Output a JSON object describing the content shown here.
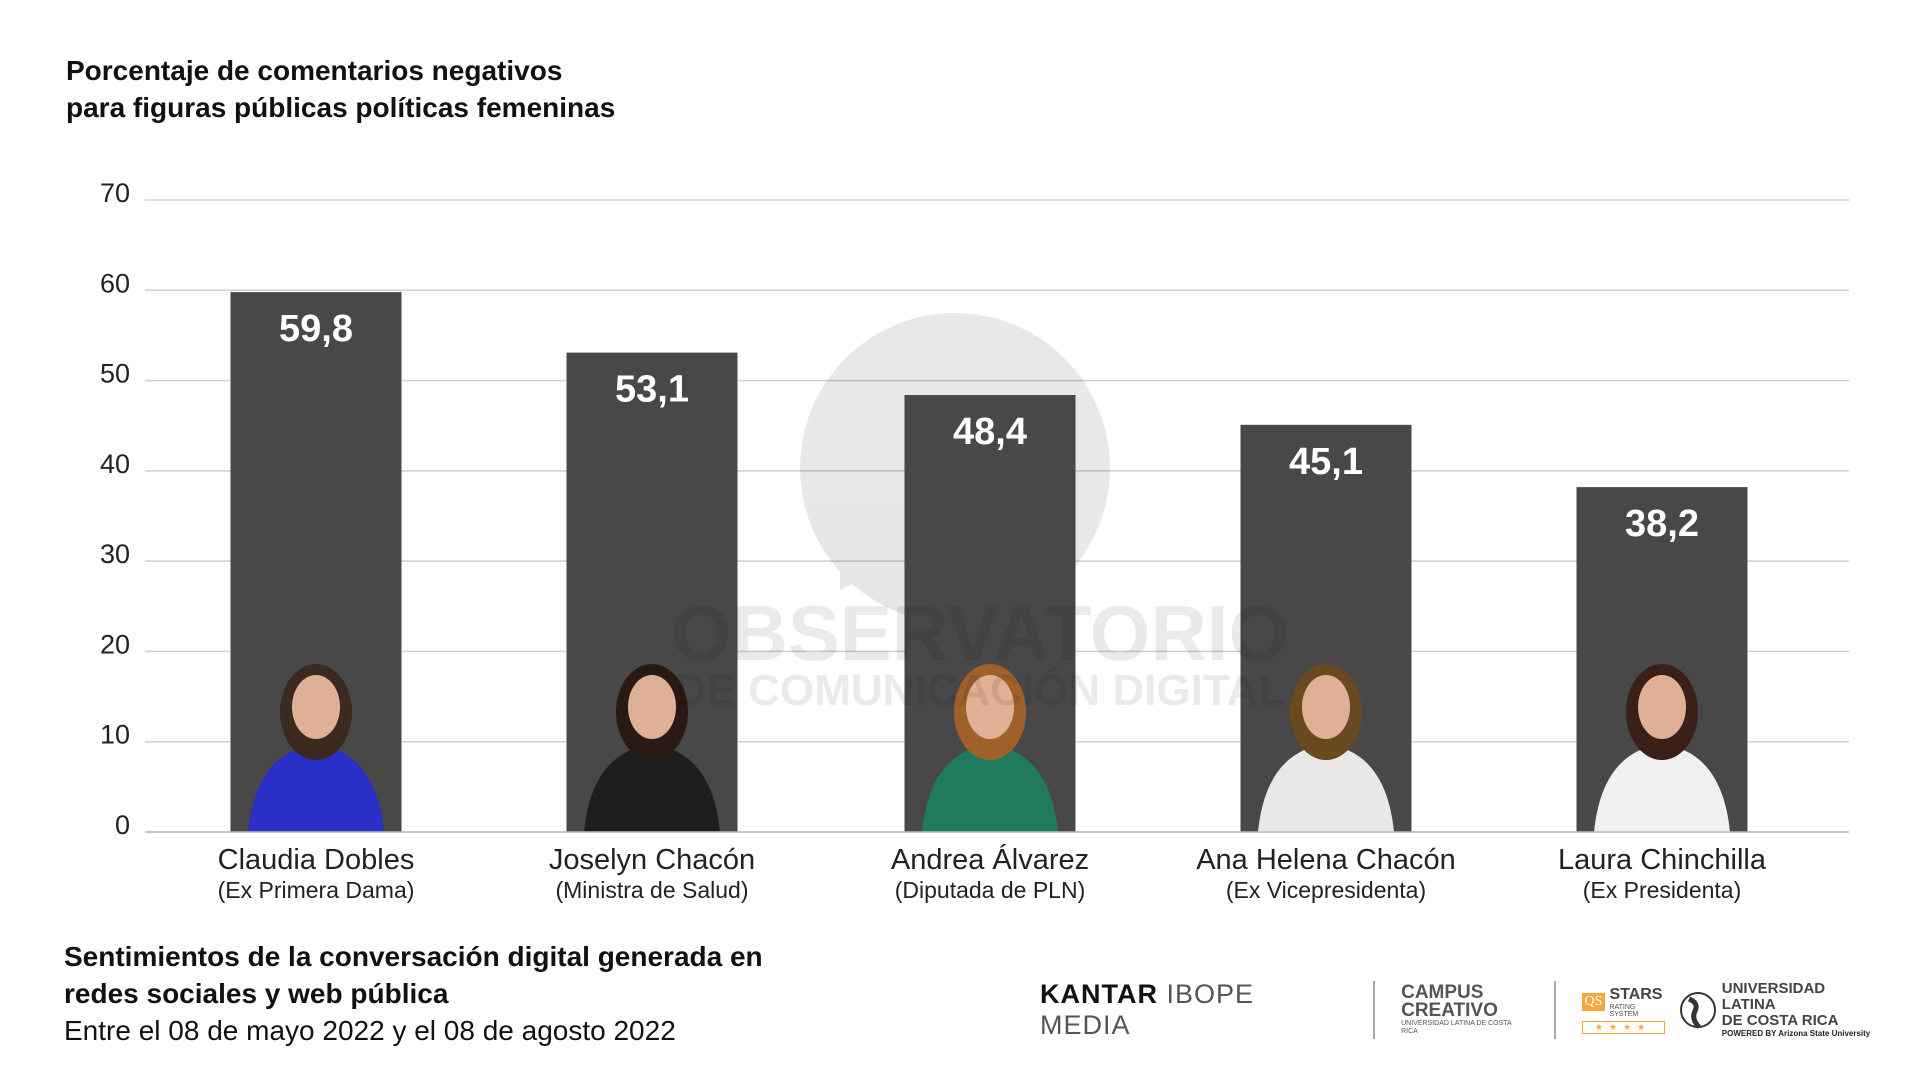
{
  "title_lines": [
    "Porcentaje de comentarios negativos",
    "para figuras públicas políticas femeninas"
  ],
  "chart_data": {
    "type": "bar",
    "title": "Porcentaje de comentarios negativos para figuras públicas políticas femeninas",
    "categories": [
      "Claudia Dobles",
      "Joselyn Chacón",
      "Andrea Álvarez",
      "Ana Helena Chacón",
      "Laura Chinchilla"
    ],
    "category_sublabels": [
      "(Ex Primera Dama)",
      "(Ministra de Salud)",
      "(Diputada de PLN)",
      "(Ex Vicepresidenta)",
      "(Ex Presidenta)"
    ],
    "values": [
      59.8,
      53.1,
      48.4,
      45.1,
      38.2
    ],
    "data_labels": [
      "59,8",
      "53,1",
      "48,4",
      "45,1",
      "38,2"
    ],
    "yticks": [
      "0",
      "10",
      "20",
      "30",
      "40",
      "50",
      "60",
      "70"
    ],
    "ylim": [
      0,
      70
    ],
    "grid": true,
    "xlabel": "",
    "ylabel": "",
    "bar_color": "#484848",
    "grid_color": "#cfcfcf"
  },
  "footer": {
    "line1": "Sentimientos de la conversación digital generada en",
    "line2": "redes sociales y web pública",
    "date": "Entre el 08 de mayo 2022 y el 08 de agosto 2022"
  },
  "watermark": {
    "line1": "OBSERVATORIO",
    "line2": "DE COMUNICACIÓN DIGITAL"
  },
  "logos": {
    "kantar_a": "KANTAR",
    "kantar_b": "IBOPE MEDIA",
    "campus_1": "CAMPUS",
    "campus_2": "CREATIVO",
    "campus_sub": "UNIVERSIDAD LATINA DE COSTA RICA",
    "qs": "QS",
    "stars": "STARS",
    "rating": "RATING SYSTEM",
    "stars_row": "★★★★",
    "ulat_1": "UNIVERSIDAD LATINA",
    "ulat_2": "DE COSTA RICA",
    "ulat_sub": "POWERED BY Arizona State University"
  }
}
